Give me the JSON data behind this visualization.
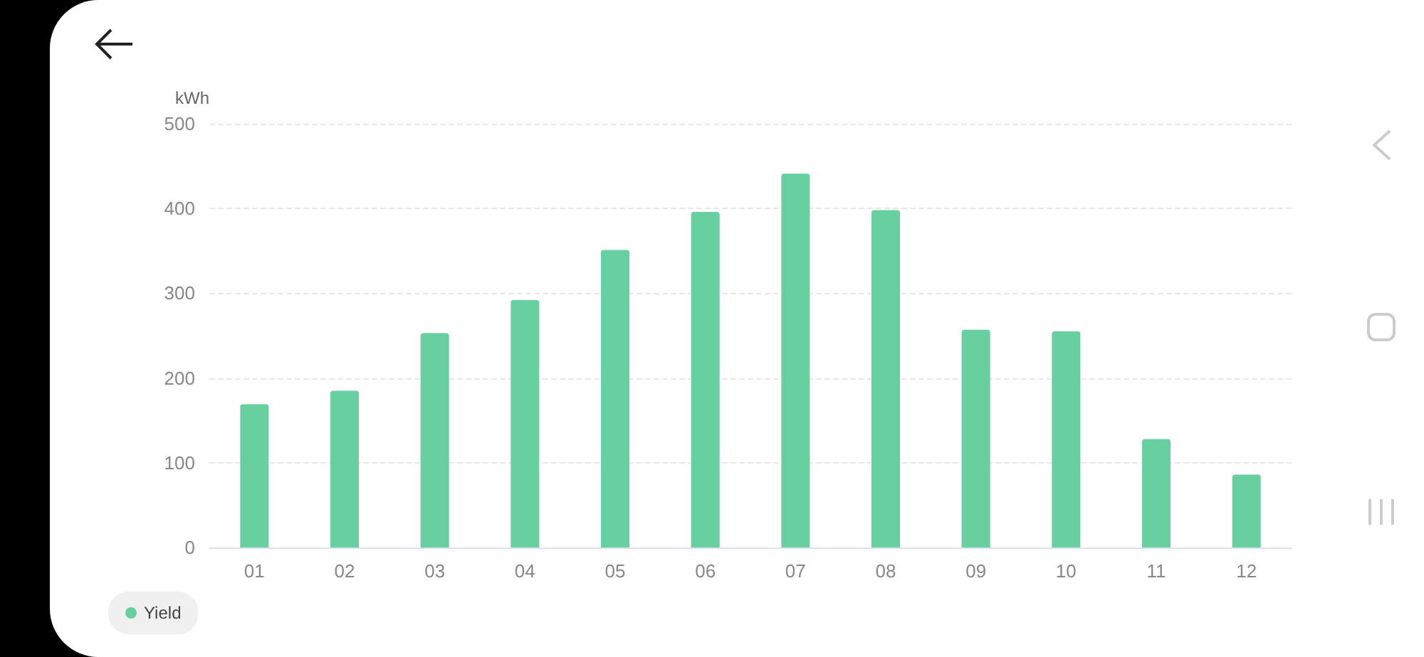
{
  "chart_data": {
    "type": "bar",
    "ylabel": "kWh",
    "categories": [
      "01",
      "02",
      "03",
      "04",
      "05",
      "06",
      "07",
      "08",
      "09",
      "10",
      "11",
      "12"
    ],
    "series": [
      {
        "name": "Yield",
        "color": "#68cfa0",
        "values": [
          169,
          185,
          253,
          292,
          351,
          396,
          441,
          398,
          257,
          255,
          128,
          86
        ]
      }
    ],
    "ylim": [
      0,
      500
    ],
    "yticks": [
      0,
      100,
      200,
      300,
      400,
      500
    ],
    "grid": "y",
    "legend": "bottom left"
  }
}
